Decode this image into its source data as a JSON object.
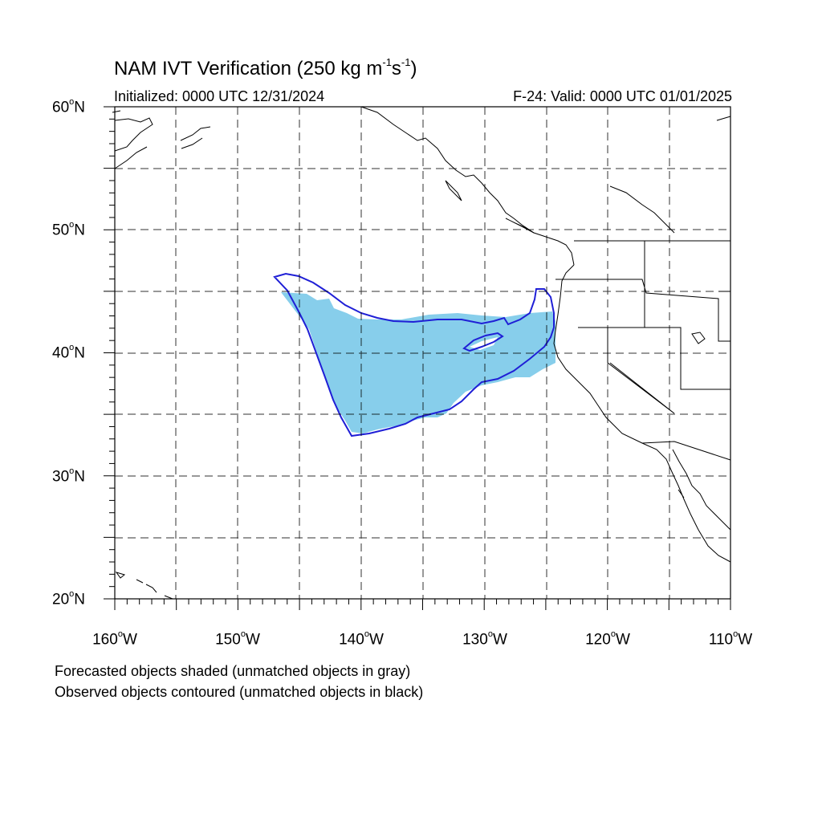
{
  "title": {
    "prefix": "NAM IVT Verification (250 kg m",
    "exp1": "-1",
    "mid": "s",
    "exp2": "-1",
    "suffix": ")"
  },
  "initialized": "Initialized: 0000 UTC 12/31/2024",
  "valid": "F-24: Valid: 0000 UTC 01/01/2025",
  "lat_labels": [
    {
      "value": "60",
      "suffix": "N"
    },
    {
      "value": "50",
      "suffix": "N"
    },
    {
      "value": "40",
      "suffix": "N"
    },
    {
      "value": "30",
      "suffix": "N"
    },
    {
      "value": "20",
      "suffix": "N"
    }
  ],
  "lon_labels": [
    {
      "value": "160",
      "suffix": "W"
    },
    {
      "value": "150",
      "suffix": "W"
    },
    {
      "value": "140",
      "suffix": "W"
    },
    {
      "value": "130",
      "suffix": "W"
    },
    {
      "value": "120",
      "suffix": "W"
    },
    {
      "value": "110",
      "suffix": "W"
    }
  ],
  "notes": {
    "line1": "Forecasted objects shaded (unmatched objects in gray)",
    "line2": "Observed objects contoured (unmatched objects in black)"
  },
  "colors": {
    "forecast_fill": "#87ceeb",
    "observed_contour": "#1f1fd6",
    "grid": "#000000",
    "coastline": "#000000"
  },
  "map": {
    "projection": "cylindrical equidistant",
    "lon_range": [
      -160,
      -110
    ],
    "lat_range": [
      20,
      60
    ],
    "grid_spacing_deg": 5,
    "grid_style": "dashed"
  }
}
